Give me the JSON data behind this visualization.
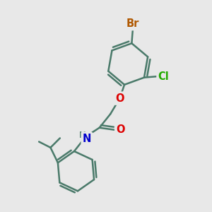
{
  "bg_color": "#e8e8e8",
  "bond_color": "#4a7a6a",
  "bond_width": 1.8,
  "atom_colors": {
    "Br": "#b05800",
    "Cl": "#22aa00",
    "O": "#dd0000",
    "N": "#0000cc",
    "C": "#4a7a6a"
  },
  "font_size": 9.5,
  "fig_size": [
    3.0,
    3.0
  ],
  "dpi": 100
}
